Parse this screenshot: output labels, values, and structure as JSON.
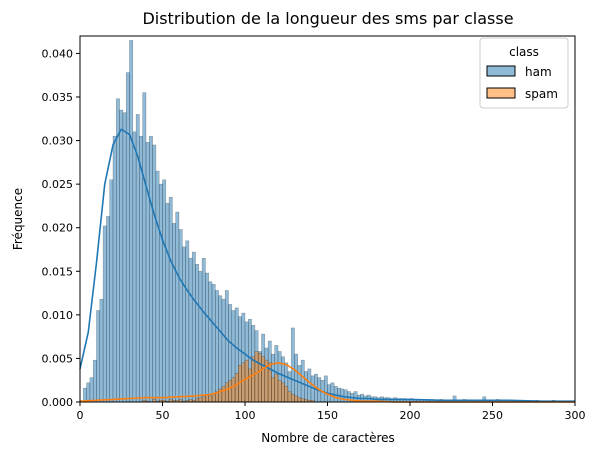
{
  "chart_data": {
    "type": "histogram",
    "title": "Distribution de la longueur des sms par classe",
    "xlabel": "Nombre de caractères",
    "ylabel": "Fréquence",
    "xlim": [
      0,
      300
    ],
    "ylim": [
      0,
      0.042
    ],
    "x_ticks": [
      0,
      50,
      100,
      150,
      200,
      250,
      300
    ],
    "x_tick_labels": [
      "0",
      "50",
      "100",
      "150",
      "200",
      "250",
      "300"
    ],
    "y_ticks": [
      0,
      0.005,
      0.01,
      0.015,
      0.02,
      0.025,
      0.03,
      0.035,
      0.04
    ],
    "y_tick_labels": [
      "0.000",
      "0.005",
      "0.010",
      "0.015",
      "0.020",
      "0.025",
      "0.030",
      "0.035",
      "0.040"
    ],
    "grid": false,
    "legend": {
      "title": "class",
      "placement": "top-right",
      "entries": [
        "ham",
        "spam"
      ]
    },
    "bin_width": 2,
    "series": [
      {
        "name": "ham",
        "color": "#1f77b4",
        "bin_start": 2,
        "values": [
          0.0016,
          0.0022,
          0.0028,
          0.0048,
          0.0105,
          0.0118,
          0.0202,
          0.0213,
          0.0255,
          0.0305,
          0.0348,
          0.0335,
          0.0332,
          0.0378,
          0.0415,
          0.031,
          0.033,
          0.0305,
          0.0355,
          0.0298,
          0.0305,
          0.0295,
          0.0265,
          0.025,
          0.0255,
          0.0228,
          0.0235,
          0.0205,
          0.0218,
          0.0198,
          0.0178,
          0.0185,
          0.0165,
          0.0172,
          0.0158,
          0.015,
          0.0165,
          0.0148,
          0.0138,
          0.0135,
          0.0128,
          0.0122,
          0.0118,
          0.0128,
          0.0112,
          0.0105,
          0.0108,
          0.0098,
          0.0102,
          0.0092,
          0.0095,
          0.0088,
          0.0082,
          0.0058,
          0.0078,
          0.0062,
          0.007,
          0.0055,
          0.0065,
          0.0058,
          0.0052,
          0.0045,
          0.0035,
          0.0085,
          0.0055,
          0.0042,
          0.0048,
          0.0035,
          0.0038,
          0.003,
          0.0032,
          0.0028,
          0.0025,
          0.003,
          0.002,
          0.0022,
          0.0018,
          0.0016,
          0.0015,
          0.0014,
          0.0012,
          0.001,
          0.0012,
          0.0008,
          0.0009,
          0.0007,
          0.0008,
          0.0006,
          0.0006,
          0.0005,
          0.0006,
          0.0005,
          0.0005,
          0.0004,
          0.0005,
          0.0004,
          0.0004,
          0.0004,
          0.0003,
          0.0004,
          0.0003,
          0.0003,
          0.0003,
          0.0003,
          0.0002,
          0.0003,
          0.0002,
          0.0002,
          0.0003,
          0.0002,
          0.0002,
          0.0002,
          0.0007,
          0.0002,
          0.0002,
          0.0003,
          0.0002,
          0.0002,
          0.0001,
          0.0002,
          0.0002,
          0.0006,
          0.0002,
          0.0001,
          0.0002,
          0.0003,
          0.0001,
          0.0002,
          0.0002,
          0.0001,
          0.0002,
          0.0001,
          0.0001,
          0.0002,
          0.0001,
          0.0001,
          0.0001,
          0.0002,
          0.0001,
          0.0001,
          0.0001,
          0.0001,
          0.0002,
          0.0001,
          0.0001,
          0.0001,
          0.0001,
          0.0001,
          0.0001,
          0.0001
        ]
      },
      {
        "name": "spam",
        "color": "#ff7f0e",
        "bin_start": 38,
        "values": [
          0.0002,
          0.0001,
          0,
          0.0003,
          0.0001,
          0.0002,
          0.0002,
          0.0001,
          0.0003,
          0.0002,
          0.0002,
          0.0003,
          0.0001,
          0.0002,
          0.0003,
          0.0002,
          0.0004,
          0.0005,
          0.0006,
          0.0008,
          0.0007,
          0.0009,
          0.0012,
          0.0015,
          0.0018,
          0.0022,
          0.0025,
          0.0028,
          0.0033,
          0.0042,
          0.0045,
          0.0048,
          0.0038,
          0.0052,
          0.0058,
          0.0056,
          0.0052,
          0.0048,
          0.0045,
          0.0028,
          0.0032,
          0.0025,
          0.0022,
          0.0018,
          0.0012,
          0.0009,
          0.0007,
          0.0005,
          0.0004,
          0.0003,
          0.0002,
          0.0002
        ]
      }
    ],
    "kde": [
      {
        "name": "ham",
        "x": [
          0,
          5,
          10,
          15,
          20,
          25,
          30,
          35,
          40,
          45,
          50,
          55,
          60,
          65,
          70,
          75,
          80,
          85,
          90,
          95,
          100,
          105,
          110,
          115,
          120,
          125,
          130,
          135,
          140,
          145,
          150,
          155,
          160,
          165,
          170,
          175,
          180,
          190,
          200,
          220,
          240,
          260,
          280,
          300
        ],
        "y": [
          0.0038,
          0.008,
          0.016,
          0.025,
          0.0295,
          0.0313,
          0.0307,
          0.0282,
          0.0248,
          0.0215,
          0.0186,
          0.0162,
          0.0143,
          0.0128,
          0.0115,
          0.0103,
          0.0092,
          0.0081,
          0.007,
          0.0062,
          0.0055,
          0.0048,
          0.0043,
          0.0038,
          0.0033,
          0.0029,
          0.0025,
          0.0021,
          0.0017,
          0.0013,
          0.001,
          0.0008,
          0.0006,
          0.0005,
          0.0004,
          0.0004,
          0.0003,
          0.0003,
          0.0003,
          0.0002,
          0.0002,
          0.0002,
          0.0001,
          0.0001
        ]
      },
      {
        "name": "spam",
        "x": [
          0,
          10,
          20,
          30,
          40,
          50,
          60,
          70,
          80,
          85,
          90,
          95,
          100,
          105,
          110,
          115,
          120,
          125,
          130,
          135,
          140,
          145,
          150,
          155,
          160,
          165,
          170,
          180,
          190,
          200,
          220,
          250,
          300
        ],
        "y": [
          0.0001,
          0.0002,
          0.0003,
          0.0004,
          0.0005,
          0.0005,
          0.0006,
          0.0007,
          0.0009,
          0.0012,
          0.0015,
          0.002,
          0.0026,
          0.0031,
          0.0037,
          0.0043,
          0.0045,
          0.0043,
          0.0037,
          0.0029,
          0.0021,
          0.0014,
          0.0009,
          0.0005,
          0.0003,
          0.0002,
          0.0001,
          0.0001,
          0,
          0,
          0,
          0,
          0
        ]
      }
    ]
  }
}
